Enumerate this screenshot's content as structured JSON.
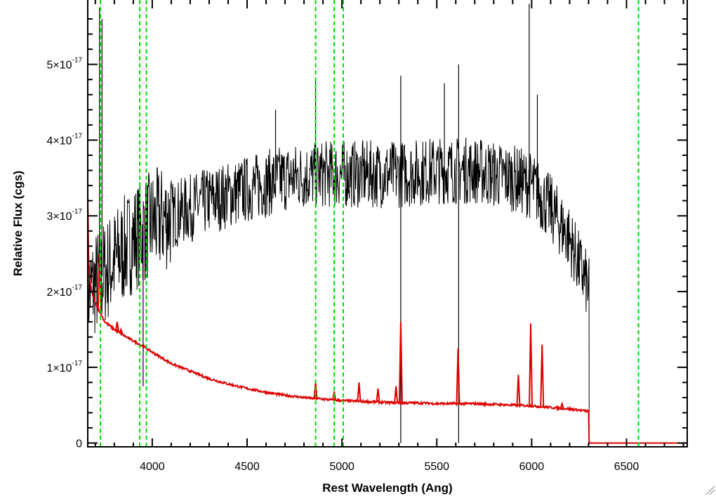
{
  "chart_data": {
    "type": "line",
    "title": "",
    "xlabel": "Rest Wavelength (Ang)",
    "ylabel": "Relative Flux (cgs)",
    "xlim": [
      3660,
      6820
    ],
    "ylim": [
      -5e-19,
      5.85e-17
    ],
    "x_ticks": [
      {
        "value": 4000,
        "label": "4000"
      },
      {
        "value": 4500,
        "label": "4500"
      },
      {
        "value": 5000,
        "label": "5000"
      },
      {
        "value": 5500,
        "label": "5500"
      },
      {
        "value": 6000,
        "label": "6000"
      },
      {
        "value": 6500,
        "label": "6500"
      }
    ],
    "y_ticks": [
      {
        "value": 0,
        "mant": "0",
        "exp": ""
      },
      {
        "value": 1e-17,
        "mant": "1×10",
        "exp": "-17"
      },
      {
        "value": 2e-17,
        "mant": "2×10",
        "exp": "-17"
      },
      {
        "value": 3e-17,
        "mant": "3×10",
        "exp": "-17"
      },
      {
        "value": 4e-17,
        "mant": "4×10",
        "exp": "-17"
      },
      {
        "value": 5e-17,
        "mant": "5×10",
        "exp": "-17"
      }
    ],
    "grid": false,
    "vertical_markers": {
      "color": "#00dd00",
      "style": "dashed",
      "x": [
        3727,
        3934,
        3969,
        4861,
        4959,
        5007,
        6563
      ]
    },
    "series": [
      {
        "color": "#000000",
        "continuum": [
          [
            3660,
            2e-17
          ],
          [
            3700,
            2.1e-17
          ],
          [
            3800,
            2.4e-17
          ],
          [
            3900,
            2.7e-17
          ],
          [
            4000,
            2.9e-17
          ],
          [
            4100,
            3e-17
          ],
          [
            4300,
            3.2e-17
          ],
          [
            4500,
            3.35e-17
          ],
          [
            4700,
            3.5e-17
          ],
          [
            4900,
            3.55e-17
          ],
          [
            5100,
            3.55e-17
          ],
          [
            5300,
            3.55e-17
          ],
          [
            5500,
            3.6e-17
          ],
          [
            5700,
            3.6e-17
          ],
          [
            5900,
            3.5e-17
          ],
          [
            6000,
            3.4e-17
          ],
          [
            6100,
            3.1e-17
          ],
          [
            6200,
            2.7e-17
          ],
          [
            6250,
            2.35e-17
          ],
          [
            6290,
            2.1e-17
          ],
          [
            6300,
            2e-17
          ]
        ],
        "noise_amplitude": 4.5e-18,
        "spikes": [
          [
            3722,
            5.75e-17
          ],
          [
            3735,
            5.6e-17
          ],
          [
            4861,
            4.8e-17
          ],
          [
            5310,
            4.85e-17
          ],
          [
            5310,
            0.0
          ],
          [
            5615,
            5e-17
          ],
          [
            5615,
            0.0
          ],
          [
            5987,
            5.8e-17
          ],
          [
            6030,
            4.6e-17
          ],
          [
            5540,
            4.75e-17
          ],
          [
            4650,
            4.4e-17
          ],
          [
            3952,
            7.5e-18
          ]
        ],
        "x_end": 6303
      },
      {
        "color": "#dd0000",
        "points": [
          [
            3660,
            3.3e-17
          ],
          [
            3665,
            2.3e-17
          ],
          [
            3680,
            2e-17
          ],
          [
            3700,
            1.85e-17
          ],
          [
            3720,
            1.75e-17
          ],
          [
            3750,
            1.6e-17
          ],
          [
            3800,
            1.5e-17
          ],
          [
            3850,
            1.42e-17
          ],
          [
            3900,
            1.35e-17
          ],
          [
            3950,
            1.28e-17
          ],
          [
            4000,
            1.2e-17
          ],
          [
            4100,
            1.05e-17
          ],
          [
            4200,
            9.5e-18
          ],
          [
            4300,
            8.5e-18
          ],
          [
            4400,
            7.8e-18
          ],
          [
            4500,
            7.2e-18
          ],
          [
            4600,
            6.7e-18
          ],
          [
            4700,
            6.3e-18
          ],
          [
            4800,
            6e-18
          ],
          [
            4900,
            5.8e-18
          ],
          [
            5000,
            5.6e-18
          ],
          [
            5100,
            5.5e-18
          ],
          [
            5200,
            5.4e-18
          ],
          [
            5300,
            5.3e-18
          ],
          [
            5400,
            5.3e-18
          ],
          [
            5500,
            5.2e-18
          ],
          [
            5600,
            5.2e-18
          ],
          [
            5700,
            5.2e-18
          ],
          [
            5800,
            5.1e-18
          ],
          [
            5900,
            5e-18
          ],
          [
            6000,
            4.9e-18
          ],
          [
            6100,
            4.7e-18
          ],
          [
            6200,
            4.5e-18
          ],
          [
            6300,
            4.2e-18
          ],
          [
            6303,
            0.0
          ],
          [
            6820,
            0.0
          ]
        ],
        "emission_lines": [
          [
            3722,
            2.5e-17
          ],
          [
            3815,
            1.6e-17
          ],
          [
            3835,
            1.5e-17
          ],
          [
            4861,
            8e-18
          ],
          [
            4959,
            6.8e-18
          ],
          [
            5090,
            8e-18
          ],
          [
            5190,
            7.2e-18
          ],
          [
            5285,
            7.5e-18
          ],
          [
            5310,
            1.6e-17
          ],
          [
            5612,
            1.25e-17
          ],
          [
            5930,
            9e-18
          ],
          [
            5995,
            1.58e-17
          ],
          [
            6055,
            1.3e-17
          ],
          [
            6160,
            5.2e-18
          ]
        ]
      }
    ]
  }
}
